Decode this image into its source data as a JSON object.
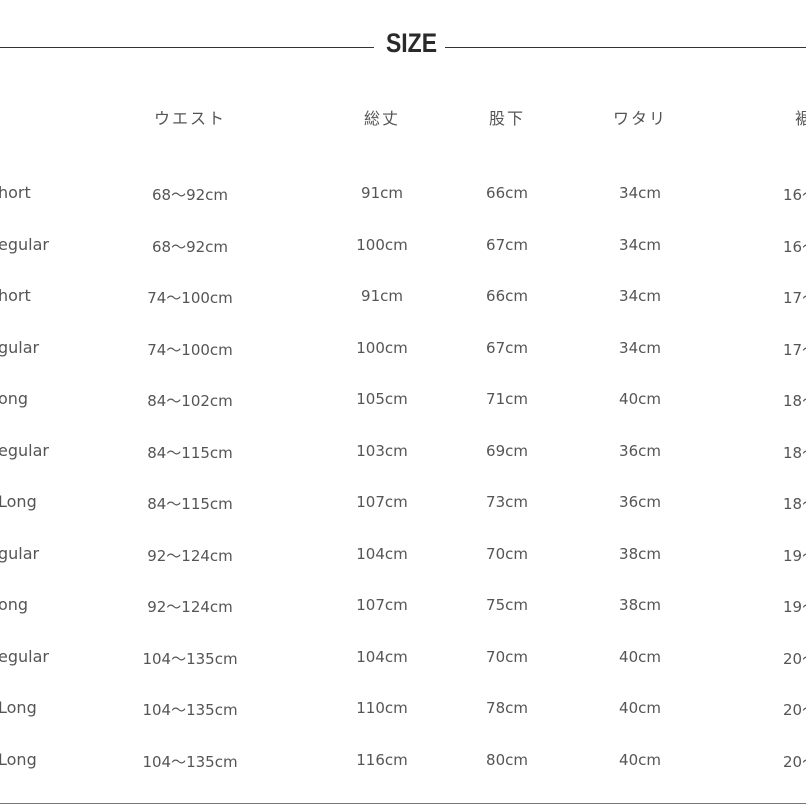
{
  "title": "SIZE",
  "headers": [
    "ウエスト",
    "総丈",
    "股下",
    "ワタリ",
    "裾"
  ],
  "rows": [
    {
      "label": "hort",
      "cells": [
        "68〜92cm",
        "91cm",
        "66cm",
        "34cm",
        "16〜"
      ]
    },
    {
      "label": "egular",
      "cells": [
        "68〜92cm",
        "100cm",
        "67cm",
        "34cm",
        "16〜"
      ]
    },
    {
      "label": "hort",
      "cells": [
        "74〜100cm",
        "91cm",
        "66cm",
        "34cm",
        "17〜"
      ]
    },
    {
      "label": "gular",
      "cells": [
        "74〜100cm",
        "100cm",
        "67cm",
        "34cm",
        "17〜"
      ]
    },
    {
      "label": "ong",
      "cells": [
        "84〜102cm",
        "105cm",
        "71cm",
        "40cm",
        "18〜"
      ]
    },
    {
      "label": "egular",
      "cells": [
        "84〜115cm",
        "103cm",
        "69cm",
        "36cm",
        "18〜"
      ]
    },
    {
      "label": "Long",
      "cells": [
        "84〜115cm",
        "107cm",
        "73cm",
        "36cm",
        "18〜"
      ]
    },
    {
      "label": "gular",
      "cells": [
        "92〜124cm",
        "104cm",
        "70cm",
        "38cm",
        "19〜"
      ]
    },
    {
      "label": "ong",
      "cells": [
        "92〜124cm",
        "107cm",
        "75cm",
        "38cm",
        "19〜"
      ]
    },
    {
      "label": "egular",
      "cells": [
        "104〜135cm",
        "104cm",
        "70cm",
        "40cm",
        "20〜"
      ]
    },
    {
      "label": "Long",
      "cells": [
        "104〜135cm",
        "110cm",
        "78cm",
        "40cm",
        "20〜"
      ]
    },
    {
      "label": "Long",
      "cells": [
        "104〜135cm",
        "116cm",
        "80cm",
        "40cm",
        "20〜"
      ]
    }
  ]
}
